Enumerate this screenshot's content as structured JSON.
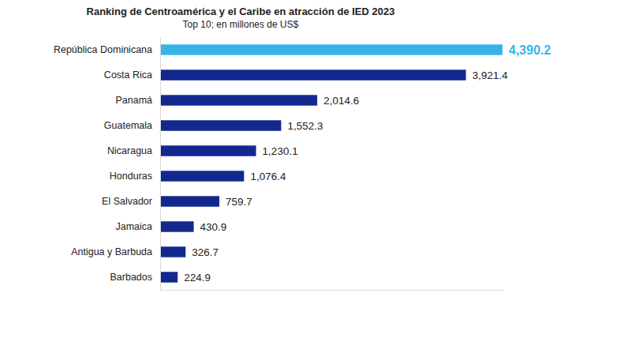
{
  "chart_data": {
    "type": "bar",
    "orientation": "horizontal",
    "title": "Ranking de Centroamérica y el Caribe en atracción de IED 2023",
    "subtitle": "Top 10; en millones de US$",
    "categories": [
      "República Dominicana",
      "Costa Rica",
      "Panamá",
      "Guatemala",
      "Nicaragua",
      "Honduras",
      "El Salvador",
      "Jamaica",
      "Antigua y Barbuda",
      "Barbados"
    ],
    "values": [
      4390.2,
      3921.4,
      2014.6,
      1552.3,
      1230.1,
      1076.4,
      759.7,
      430.9,
      326.7,
      224.9
    ],
    "value_labels": [
      "4,390.2",
      "3,921.4",
      "2,014.6",
      "1,552.3",
      "1,230.1",
      "1,076.4",
      "759.7",
      "430.9",
      "326.7",
      "224.9"
    ],
    "colors": [
      "#36b4ea",
      "#13288f",
      "#13288f",
      "#13288f",
      "#13288f",
      "#13288f",
      "#13288f",
      "#13288f",
      "#13288f",
      "#13288f"
    ],
    "xlim": [
      0,
      4400
    ],
    "data_labels": true,
    "tick_labels": "y",
    "grid": false
  }
}
